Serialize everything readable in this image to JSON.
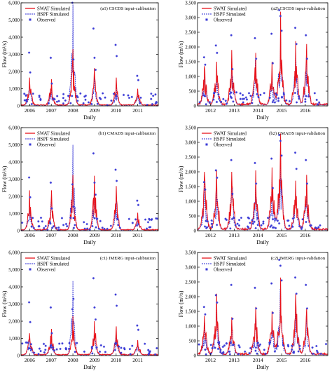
{
  "legend_labels": {
    "swat": "SWAT Simulated",
    "hspf": "HSPF Simulated",
    "observed": "Observed"
  },
  "colors": {
    "swat": "#e8141b",
    "hspf": "#2b2bd4",
    "observed": "#3a3ad6"
  },
  "chart_data": [
    {
      "type": "line",
      "title": "(a1) CSCDS input-calibration",
      "ylabel": "Flow (m³/s)",
      "xlabel": "Daily",
      "x_ticks": [
        "2006",
        "2007",
        "2008",
        "2009",
        "2010",
        "2011"
      ],
      "y_ticks": [
        "0",
        "1,000",
        "2,000",
        "3,000",
        "4,000",
        "5,000",
        "6,000"
      ],
      "ylim": [
        0,
        6000
      ],
      "xlim": [
        2005.6,
        2011.95
      ],
      "legend": "top-left",
      "models": [
        "swat",
        "hspf"
      ],
      "peaks": [
        {
          "x": 2006.0,
          "y": 1650,
          "obs": [
            3100,
            1950
          ]
        },
        {
          "x": 2007.0,
          "y": 1550,
          "obs": [
            2800,
            1300
          ]
        },
        {
          "x": 2008.0,
          "y": 3300,
          "hspf_y": 5900,
          "obs": [
            6000,
            2700
          ]
        },
        {
          "x": 2009.0,
          "y": 2200,
          "obs": [
            4500,
            2800,
            2100
          ]
        },
        {
          "x": 2010.0,
          "y": 1650,
          "obs": [
            3550,
            2900
          ]
        },
        {
          "x": 2011.0,
          "y": 1000,
          "obs": [
            1750,
            1500
          ]
        }
      ]
    },
    {
      "type": "line",
      "title": "(a2) CSCDS input-validation",
      "ylabel": "Flow (m³/s)",
      "xlabel": "Daily",
      "x_ticks": [
        "2012",
        "2013",
        "2014",
        "2015",
        "2016"
      ],
      "y_ticks": [
        "0",
        "500",
        "1,000",
        "1,500",
        "2,000",
        "2,500",
        "3,000",
        "3,500"
      ],
      "ylim": [
        0,
        3500
      ],
      "xlim": [
        2011.45,
        2016.95
      ],
      "legend": "top-left",
      "models": [
        "swat",
        "hspf"
      ],
      "peaks": [
        {
          "x": 2011.75,
          "y": 1350,
          "obs": [
            1650,
            1400
          ]
        },
        {
          "x": 2012.25,
          "y": 1500,
          "obs": [
            2050,
            1800
          ]
        },
        {
          "x": 2012.9,
          "y": 1900,
          "obs": [
            2400,
            1250
          ]
        },
        {
          "x": 2013.9,
          "y": 1800,
          "obs": [
            2300,
            1600
          ]
        },
        {
          "x": 2014.6,
          "y": 1500,
          "obs": [
            2450,
            1450
          ]
        },
        {
          "x": 2014.95,
          "y": 3200,
          "obs": [
            3250,
            3050,
            2550
          ]
        },
        {
          "x": 2015.6,
          "y": 2200,
          "obs": [
            2650,
            2100
          ]
        },
        {
          "x": 2016.05,
          "y": 2100,
          "obs": [
            2400,
            1600
          ]
        }
      ]
    },
    {
      "type": "line",
      "title": "(b1) CMADS input-calibration",
      "ylabel": "Flow (m³/s)",
      "xlabel": "Daily",
      "x_ticks": [
        "2006",
        "2007",
        "2008",
        "2009",
        "2010",
        "2011"
      ],
      "y_ticks": [
        "0",
        "1,000",
        "2,000",
        "3,000",
        "4,000",
        "5,000",
        "6,000"
      ],
      "ylim": [
        0,
        6000
      ],
      "xlim": [
        2005.6,
        2011.95
      ],
      "legend": "top-left",
      "models": [
        "swat",
        "hspf"
      ],
      "peaks": [
        {
          "x": 2006.0,
          "y": 2350,
          "obs": [
            3100,
            1950
          ]
        },
        {
          "x": 2007.0,
          "y": 2350,
          "obs": [
            2800,
            1300
          ]
        },
        {
          "x": 2008.0,
          "y": 3250,
          "hspf_y": 5000,
          "obs": [
            2700,
            1400
          ]
        },
        {
          "x": 2009.0,
          "y": 3200,
          "obs": [
            4500,
            2800,
            2100
          ]
        },
        {
          "x": 2010.0,
          "y": 2600,
          "obs": [
            3550,
            2900
          ]
        },
        {
          "x": 2011.0,
          "y": 1050,
          "obs": [
            1750,
            1500
          ]
        }
      ]
    },
    {
      "type": "line",
      "title": "(b2) CMADS input-validation",
      "ylabel": "Flow (m³/s)",
      "xlabel": "Daily",
      "x_ticks": [
        "2012",
        "2013",
        "2014",
        "2015",
        "2016"
      ],
      "y_ticks": [
        "0",
        "500",
        "1,000",
        "1,500",
        "2,000",
        "2,500",
        "3,000",
        "3,500"
      ],
      "ylim": [
        0,
        3500
      ],
      "xlim": [
        2011.45,
        2016.95
      ],
      "legend": "top-left",
      "models": [
        "swat",
        "hspf"
      ],
      "peaks": [
        {
          "x": 2011.75,
          "y": 2000,
          "obs": [
            1650,
            1400
          ]
        },
        {
          "x": 2012.25,
          "y": 2050,
          "obs": [
            2050,
            1800
          ]
        },
        {
          "x": 2012.9,
          "y": 2000,
          "obs": [
            2400,
            1250
          ]
        },
        {
          "x": 2013.9,
          "y": 2050,
          "obs": [
            2300,
            1600
          ]
        },
        {
          "x": 2014.6,
          "y": 2150,
          "obs": [
            2450,
            1450
          ]
        },
        {
          "x": 2014.95,
          "y": 3300,
          "obs": [
            3250,
            3050,
            2550
          ]
        },
        {
          "x": 2015.6,
          "y": 1700,
          "obs": [
            2650,
            2100
          ]
        },
        {
          "x": 2016.05,
          "y": 1900,
          "obs": [
            2400,
            1600
          ]
        }
      ]
    },
    {
      "type": "line",
      "title": "(c1) IMERG input-calibration",
      "ylabel": "Flow (m³/s)",
      "xlabel": "Daily",
      "x_ticks": [
        "2006",
        "2007",
        "2008",
        "2009",
        "2010",
        "2011"
      ],
      "y_ticks": [
        "0",
        "1,000",
        "2,000",
        "3,000",
        "4,000",
        "5,000",
        "6,000"
      ],
      "ylim": [
        0,
        6000
      ],
      "xlim": [
        2005.6,
        2011.95
      ],
      "legend": "top-left",
      "models": [
        "swat",
        "hspf"
      ],
      "peaks": [
        {
          "x": 2006.0,
          "y": 1300,
          "obs": [
            3100,
            1950
          ]
        },
        {
          "x": 2007.0,
          "y": 1550,
          "obs": [
            2800,
            1300
          ]
        },
        {
          "x": 2008.0,
          "y": 2300,
          "hspf_y": 4350,
          "obs": [
            2700,
            3300
          ]
        },
        {
          "x": 2009.0,
          "y": 2000,
          "obs": [
            4500,
            2800,
            2100
          ]
        },
        {
          "x": 2010.0,
          "y": 1700,
          "obs": [
            3550,
            2900
          ]
        },
        {
          "x": 2011.0,
          "y": 900,
          "obs": [
            1750,
            1500
          ]
        }
      ]
    },
    {
      "type": "line",
      "title": "(c2) IMERG input-validation",
      "ylabel": "Flow (m³/s)",
      "xlabel": "Daily",
      "x_ticks": [
        "2012",
        "2013",
        "2014",
        "2015",
        "2016"
      ],
      "y_ticks": [
        "0",
        "500",
        "1,000",
        "1,500",
        "2,000",
        "2,500",
        "3,000",
        "3,500"
      ],
      "ylim": [
        0,
        3500
      ],
      "xlim": [
        2011.45,
        2016.95
      ],
      "legend": "top-left",
      "models": [
        "swat",
        "hspf"
      ],
      "peaks": [
        {
          "x": 2011.75,
          "y": 1350,
          "obs": [
            1650,
            1400
          ]
        },
        {
          "x": 2012.25,
          "y": 2100,
          "obs": [
            2050,
            1800
          ]
        },
        {
          "x": 2012.9,
          "y": 1300,
          "obs": [
            2400,
            1250
          ]
        },
        {
          "x": 2013.9,
          "y": 1650,
          "obs": [
            2300,
            1600
          ]
        },
        {
          "x": 2014.6,
          "y": 1500,
          "obs": [
            2450,
            1450
          ]
        },
        {
          "x": 2014.95,
          "y": 2650,
          "obs": [
            3250,
            3050,
            2550
          ]
        },
        {
          "x": 2015.6,
          "y": 2100,
          "obs": [
            2650,
            2100
          ]
        },
        {
          "x": 2016.05,
          "y": 1600,
          "obs": [
            2400,
            1600
          ]
        }
      ]
    }
  ]
}
